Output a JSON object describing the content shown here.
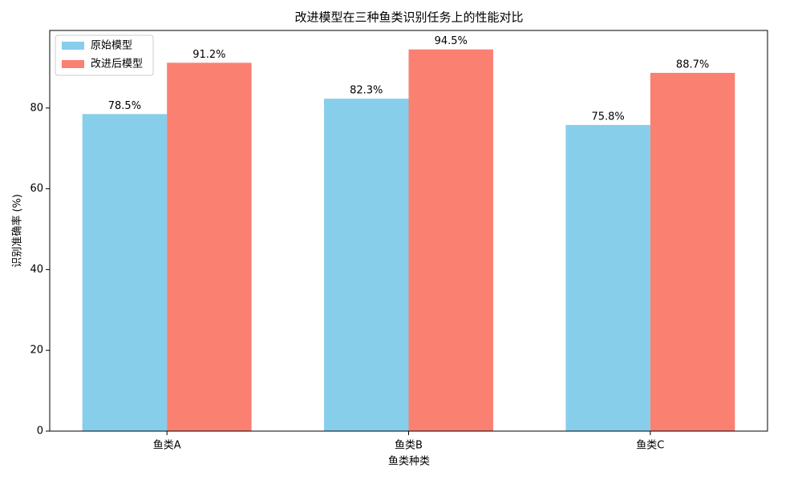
{
  "chart_data": {
    "type": "bar",
    "title": "改进模型在三种鱼类识别任务上的性能对比",
    "xlabel": "鱼类种类",
    "ylabel": "识别准确率 (%)",
    "categories": [
      "鱼类A",
      "鱼类B",
      "鱼类C"
    ],
    "series": [
      {
        "name": "原始模型",
        "color": "#87ceeb",
        "values": [
          78.5,
          82.3,
          75.8
        ],
        "value_labels": [
          "78.5%",
          "82.3%",
          "75.8%"
        ]
      },
      {
        "name": "改进后模型",
        "color": "#fa8072",
        "values": [
          91.2,
          94.5,
          88.7
        ],
        "value_labels": [
          "91.2%",
          "94.5%",
          "88.7%"
        ]
      }
    ],
    "ylim": [
      0,
      99.2
    ],
    "yticks": [
      0,
      20,
      40,
      60,
      80
    ],
    "legend": "upper left",
    "grid": false
  }
}
